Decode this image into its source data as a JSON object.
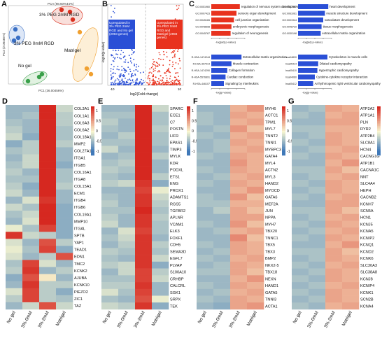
{
  "figure": {
    "panels": {
      "A": {
        "label": "A",
        "title": "PCA (98.60%44%)",
        "xlabel": "PC1 (36.00456%)",
        "ylabel": "PC2 (2.00465%)",
        "groups": [
          {
            "name": "3% PEG 2mM RGD",
            "color": "#d93020"
          },
          {
            "name": "3% PEG 0mM RGD",
            "color": "#3a6fc4"
          },
          {
            "name": "No gel",
            "color": "#3aa04a"
          },
          {
            "name": "Matrigel",
            "color": "#f0a030"
          }
        ]
      },
      "B": {
        "label": "B",
        "xlabel": "log2(Fold change)",
        "ylabel": "-log10(p-value)",
        "up_text": "Upregulated in 3% PEG 2mM RGD and No gel (2993 genes)",
        "down_text": "Upregulated in 3% PEG 0mM RGD and Matrigel (2993 genes)",
        "xticks": [
          "-10",
          "0",
          "10"
        ]
      },
      "C": {
        "label": "C",
        "blocks": [
          {
            "color": "#e8321e",
            "items": [
              {
                "id": "GO:0051960",
                "term": "regulation of nervous system development",
                "value": 3.4
              },
              {
                "id": "GO:0007423",
                "term": "sensory organ development",
                "value": 3.0
              },
              {
                "id": "GO:0045165",
                "term": "cell junction organization",
                "value": 2.7
              },
              {
                "id": "GO:0048598",
                "term": "embryonic morphogenesis",
                "value": 2.4
              },
              {
                "id": "GO:0045767",
                "term": "regulation of neurogenesis",
                "value": 2.3
              }
            ],
            "axis": "-log(adj p-value)"
          },
          {
            "color": "#2a4fd6",
            "items": [
              {
                "id": "GO:0007507",
                "term": "heart development",
                "value": 3.6
              },
              {
                "id": "GO:0061061",
                "term": "muscle structure development",
                "value": 3.2
              },
              {
                "id": "GO:0001944",
                "term": "vasculature development",
                "value": 3.0
              },
              {
                "id": "GO:0048729",
                "term": "tissue morphogenesis",
                "value": 2.8
              },
              {
                "id": "GO:0030198",
                "term": "extracellular matrix organization",
                "value": 2.7
              }
            ],
            "axis": "-log(adj p-value)"
          },
          {
            "color": "#2a4fd6",
            "items": [
              {
                "id": "R-HSA-1474244",
                "term": "Extracellular matrix organization",
                "value": 3.6
              },
              {
                "id": "R-HSA-397014",
                "term": "Muscle contraction",
                "value": 2.4
              },
              {
                "id": "R-HSA-1474290",
                "term": "Collagen formation",
                "value": 1.9
              },
              {
                "id": "R-HSA-5576891",
                "term": "Cardiac conduction",
                "value": 1.7
              },
              {
                "id": "R-HSA-446107",
                "term": "Signaling by Interleukins",
                "value": 1.5
              }
            ],
            "axis": "-log(p-value)"
          },
          {
            "color": "#2a4fd6",
            "items": [
              {
                "id": "hsa04820",
                "term": "Cytoskeleton in muscle cells",
                "value": 3.5
              },
              {
                "id": "hsa05414",
                "term": "Dilated cardiomyopathy",
                "value": 2.4
              },
              {
                "id": "hsa05410",
                "term": "Hypertrophic cardiomyopathy",
                "value": 2.3
              },
              {
                "id": "hsa04060",
                "term": "Cytokine-cytokine receptor interaction",
                "value": 2.0
              },
              {
                "id": "hsa05412",
                "term": "Arrhythmogenic right ventricular cardiomyopathy",
                "value": 1.8
              }
            ],
            "axis": "-log(p-value)"
          }
        ]
      }
    },
    "heatmap_columns": [
      "No gel",
      "3%-0mM",
      "3%-2mM",
      "Matrigel"
    ],
    "legend_ticks": [
      "1",
      "0.5",
      "0",
      "-0.5",
      "-1"
    ],
    "colors": {
      "low": "#3f78b8",
      "mid": "#f8f6d0",
      "high": "#d62820"
    }
  },
  "chart_data": [
    {
      "type": "heatmap",
      "panel": "D",
      "columns": [
        "No gel",
        "3%-0mM",
        "3%-2mM",
        "Matrigel"
      ],
      "rows": [
        "COL3A1",
        "COL1A1",
        "COL6A3",
        "COL6A2",
        "COL18A1",
        "MMP2",
        "COL27A1",
        "ITGA1",
        "ITGB5",
        "COL16A1",
        "ITGA8",
        "COL15A1",
        "ECM1",
        "ITGB4",
        "ITGB6",
        "COL19A1",
        "MMP10",
        "ITGAL",
        "SPTB",
        "YAP1",
        "TEAD1",
        "EDN1",
        "TMC2",
        "KCNK2",
        "AJUBA",
        "KCNK10",
        "PIEZO2",
        "ZIC1",
        "TAZ"
      ],
      "values": [
        [
          -0.6,
          -0.6,
          1.5,
          -0.3
        ],
        [
          -0.6,
          -0.5,
          1.5,
          -0.4
        ],
        [
          -0.5,
          -0.6,
          1.5,
          -0.4
        ],
        [
          -0.4,
          -0.6,
          1.5,
          -0.5
        ],
        [
          -0.3,
          -0.7,
          1.5,
          -0.5
        ],
        [
          -0.7,
          -0.4,
          1.5,
          -0.4
        ],
        [
          -0.5,
          -0.4,
          1.5,
          -0.6
        ],
        [
          -0.6,
          -0.3,
          1.5,
          -0.6
        ],
        [
          -0.5,
          -0.3,
          1.5,
          -0.7
        ],
        [
          -0.4,
          -0.6,
          1.5,
          -0.5
        ],
        [
          -0.5,
          -0.5,
          1.5,
          -0.5
        ],
        [
          -0.4,
          -0.7,
          1.5,
          -0.4
        ],
        [
          -0.3,
          -0.6,
          1.5,
          -0.6
        ],
        [
          -0.6,
          -0.2,
          1.4,
          -0.6
        ],
        [
          -0.3,
          -0.5,
          1.5,
          -0.7
        ],
        [
          -0.5,
          -0.3,
          1.5,
          -0.7
        ],
        [
          -0.6,
          -0.2,
          1.5,
          -0.7
        ],
        [
          -0.1,
          -0.5,
          1.3,
          -0.7
        ],
        [
          1.4,
          -0.3,
          -0.4,
          -0.7
        ],
        [
          -0.2,
          -0.6,
          1.2,
          -0.4
        ],
        [
          -0.1,
          -0.5,
          1.3,
          -0.7
        ],
        [
          -0.2,
          -0.6,
          -0.4,
          1.2
        ],
        [
          -0.5,
          1.3,
          -0.2,
          -0.6
        ],
        [
          -0.4,
          1.4,
          -0.6,
          -0.4
        ],
        [
          -0.7,
          1.2,
          0.1,
          -0.6
        ],
        [
          -0.6,
          1.4,
          -0.4,
          -0.4
        ],
        [
          -0.2,
          1.3,
          -0.4,
          -0.7
        ],
        [
          -0.4,
          1.3,
          -0.4,
          -0.5
        ],
        [
          -0.6,
          -0.3,
          1.2,
          -0.3
        ]
      ]
    },
    {
      "type": "heatmap",
      "panel": "E",
      "columns": [
        "No gel",
        "3%-0mM",
        "3%-2mM",
        "Matrigel"
      ],
      "rows": [
        "SPARC",
        "ECE1",
        "C7",
        "POSTN",
        "LIFR",
        "EPAS1",
        "TIMP3",
        "MYLK",
        "KDR",
        "PODXL",
        "ETS1",
        "ENG",
        "PROX1",
        "ADAMTS1",
        "RGS5",
        "TGFBR2",
        "APLNR",
        "VCAM1",
        "ELK3",
        "FOXF1",
        "CDH5",
        "SEMA3D",
        "EGFL7",
        "PLVAP",
        "S100A10",
        "CRHBP",
        "CALCRL",
        "SGK1",
        "SRPX",
        "TEK"
      ],
      "values": [
        [
          -0.6,
          -0.6,
          1.5,
          -0.3
        ],
        [
          -0.5,
          -0.5,
          1.5,
          -0.5
        ],
        [
          -0.4,
          -0.6,
          1.5,
          -0.5
        ],
        [
          -0.5,
          -0.6,
          1.5,
          -0.4
        ],
        [
          -0.6,
          -0.4,
          1.5,
          -0.5
        ],
        [
          -0.5,
          -0.5,
          1.5,
          -0.5
        ],
        [
          -0.3,
          -0.6,
          1.5,
          -0.6
        ],
        [
          -0.6,
          -0.5,
          1.5,
          -0.4
        ],
        [
          -0.5,
          -0.4,
          1.5,
          -0.6
        ],
        [
          -0.4,
          -0.5,
          1.5,
          -0.6
        ],
        [
          -0.5,
          -0.6,
          1.5,
          -0.4
        ],
        [
          -0.4,
          -0.3,
          1.4,
          -0.7
        ],
        [
          -0.6,
          -0.6,
          1.3,
          -0.1
        ],
        [
          -0.5,
          -0.6,
          1.4,
          -0.3
        ],
        [
          -0.4,
          -0.6,
          1.4,
          -0.4
        ],
        [
          -0.5,
          -0.5,
          1.5,
          -0.5
        ],
        [
          -0.4,
          -0.6,
          1.4,
          -0.4
        ],
        [
          -0.3,
          -0.6,
          1.4,
          -0.5
        ],
        [
          -0.6,
          -0.2,
          1.3,
          -0.5
        ],
        [
          -0.5,
          -0.3,
          1.4,
          -0.6
        ],
        [
          -0.6,
          -0.4,
          1.4,
          -0.4
        ],
        [
          -0.4,
          -0.5,
          1.4,
          -0.5
        ],
        [
          -0.5,
          -0.6,
          1.4,
          -0.3
        ],
        [
          -0.4,
          -0.3,
          1.4,
          -0.7
        ],
        [
          -0.6,
          -0.3,
          1.3,
          -0.4
        ],
        [
          -0.5,
          -0.5,
          1.3,
          -0.3
        ],
        [
          -0.4,
          -0.4,
          1.4,
          -0.6
        ],
        [
          -0.2,
          -0.5,
          1.3,
          -0.6
        ],
        [
          -0.5,
          -0.6,
          1.2,
          -0.1
        ],
        [
          -0.3,
          -0.4,
          1.4,
          -0.7
        ]
      ]
    },
    {
      "type": "heatmap",
      "panel": "F",
      "columns": [
        "No gel",
        "3%-0mM",
        "3%-2mM",
        "Matrigel"
      ],
      "rows": [
        "MYH6",
        "ACTC1",
        "TPM1",
        "MYL7",
        "TNNT2",
        "TNNI1",
        "MYBPC3",
        "GATA4",
        "MYL4",
        "ACTN2",
        "MYL3",
        "HAND2",
        "MYOCD",
        "GATA6",
        "MEF2A",
        "JUN",
        "NPPA",
        "MYH7",
        "TBX20",
        "TNNC1",
        "TBX5",
        "TBX3",
        "BMP2",
        "NKX2-5",
        "TBX18",
        "NEXN",
        "HAND1",
        "GATA5",
        "TNNI3",
        "ACTA1"
      ],
      "values": [
        [
          -0.6,
          -0.6,
          0.5,
          0.7
        ],
        [
          -0.5,
          -0.6,
          0.6,
          0.5
        ],
        [
          -0.5,
          -0.6,
          0.5,
          0.6
        ],
        [
          -0.6,
          -0.5,
          0.7,
          0.4
        ],
        [
          -0.5,
          -0.6,
          0.5,
          0.6
        ],
        [
          -0.6,
          -0.5,
          0.6,
          0.5
        ],
        [
          -0.6,
          -0.5,
          0.5,
          0.6
        ],
        [
          -0.5,
          -0.6,
          0.6,
          0.5
        ],
        [
          -0.6,
          -0.6,
          0.7,
          0.5
        ],
        [
          -0.5,
          -0.6,
          0.6,
          0.5
        ],
        [
          -0.6,
          -0.5,
          0.5,
          0.6
        ],
        [
          -0.5,
          -0.6,
          0.6,
          0.5
        ],
        [
          -0.6,
          -0.6,
          0.5,
          0.7
        ],
        [
          -0.5,
          -0.6,
          0.7,
          0.4
        ],
        [
          -0.5,
          -0.5,
          0.5,
          0.5
        ],
        [
          -0.6,
          -0.4,
          0.6,
          0.4
        ],
        [
          -0.6,
          -0.6,
          0.6,
          0.6
        ],
        [
          -0.5,
          -0.6,
          0.7,
          0.4
        ],
        [
          -0.6,
          -0.5,
          0.5,
          0.6
        ],
        [
          -0.6,
          -0.6,
          0.8,
          0.4
        ],
        [
          -0.5,
          -0.6,
          0.6,
          0.5
        ],
        [
          -0.6,
          -0.5,
          0.6,
          0.5
        ],
        [
          -0.5,
          -0.6,
          0.5,
          0.6
        ],
        [
          -0.6,
          -0.5,
          0.6,
          0.5
        ],
        [
          -0.5,
          -0.5,
          0.6,
          0.4
        ],
        [
          -0.6,
          -0.6,
          0.5,
          0.7
        ],
        [
          -0.5,
          -0.6,
          0.6,
          0.5
        ],
        [
          -0.6,
          -0.5,
          0.5,
          0.6
        ],
        [
          -0.5,
          -0.6,
          0.6,
          0.5
        ],
        [
          -0.6,
          -0.7,
          0.6,
          0.7
        ]
      ]
    },
    {
      "type": "heatmap",
      "panel": "G",
      "columns": [
        "No gel",
        "3%-0mM",
        "3%-2mM",
        "Matrigel"
      ],
      "rows": [
        "ATP2A2",
        "ATP1A1",
        "PLN",
        "RYR2",
        "ATP2B4",
        "SLC8A1",
        "HCN4",
        "CACNG1G",
        "ATP1B1",
        "CACNA1C",
        "NNT",
        "SLC4A4",
        "HEPH",
        "CACNB2",
        "KCNH7",
        "SCN5A",
        "HCN1",
        "KCNJ5",
        "KCNA5",
        "KCNIP2",
        "KCNQ1",
        "KCND2",
        "KCNK6",
        "SLC30A3",
        "SLC38A8",
        "KCNJ8",
        "KCNIP4",
        "KCNK1",
        "SCN2B",
        "KCNA4"
      ],
      "values": [
        [
          -0.6,
          -0.5,
          0.6,
          0.5
        ],
        [
          -0.5,
          -0.6,
          0.5,
          0.6
        ],
        [
          -0.6,
          -0.6,
          0.6,
          0.6
        ],
        [
          -0.5,
          -0.5,
          0.5,
          0.5
        ],
        [
          -0.6,
          -0.5,
          0.6,
          0.5
        ],
        [
          -0.5,
          -0.6,
          0.6,
          0.5
        ],
        [
          -0.6,
          -0.5,
          0.5,
          0.6
        ],
        [
          -0.5,
          -0.6,
          0.6,
          0.5
        ],
        [
          -0.6,
          -0.6,
          0.5,
          0.7
        ],
        [
          -0.5,
          -0.5,
          0.6,
          0.4
        ],
        [
          -0.6,
          -0.5,
          0.5,
          0.6
        ],
        [
          -0.5,
          -0.6,
          0.6,
          0.5
        ],
        [
          -0.6,
          -0.5,
          0.6,
          0.5
        ],
        [
          -0.5,
          -0.6,
          0.5,
          0.6
        ],
        [
          -0.6,
          -0.6,
          0.6,
          0.6
        ],
        [
          -0.5,
          -0.5,
          0.6,
          0.4
        ],
        [
          -0.6,
          -0.5,
          0.5,
          0.6
        ],
        [
          -0.5,
          -0.6,
          0.6,
          0.5
        ],
        [
          -0.6,
          -0.5,
          0.5,
          0.6
        ],
        [
          -0.5,
          -0.6,
          0.6,
          0.5
        ],
        [
          -0.6,
          -0.6,
          0.5,
          0.7
        ],
        [
          -0.5,
          -0.5,
          0.6,
          0.4
        ],
        [
          -0.6,
          -0.5,
          0.6,
          0.5
        ],
        [
          -0.5,
          -0.6,
          0.5,
          0.6
        ],
        [
          -0.6,
          -0.5,
          0.6,
          0.5
        ],
        [
          -0.5,
          -0.6,
          0.6,
          0.5
        ],
        [
          -0.6,
          -0.5,
          0.5,
          0.6
        ],
        [
          -0.5,
          -0.6,
          0.6,
          0.5
        ],
        [
          -0.6,
          -0.5,
          0.6,
          0.5
        ],
        [
          -0.5,
          -0.6,
          0.5,
          0.6
        ]
      ]
    }
  ]
}
